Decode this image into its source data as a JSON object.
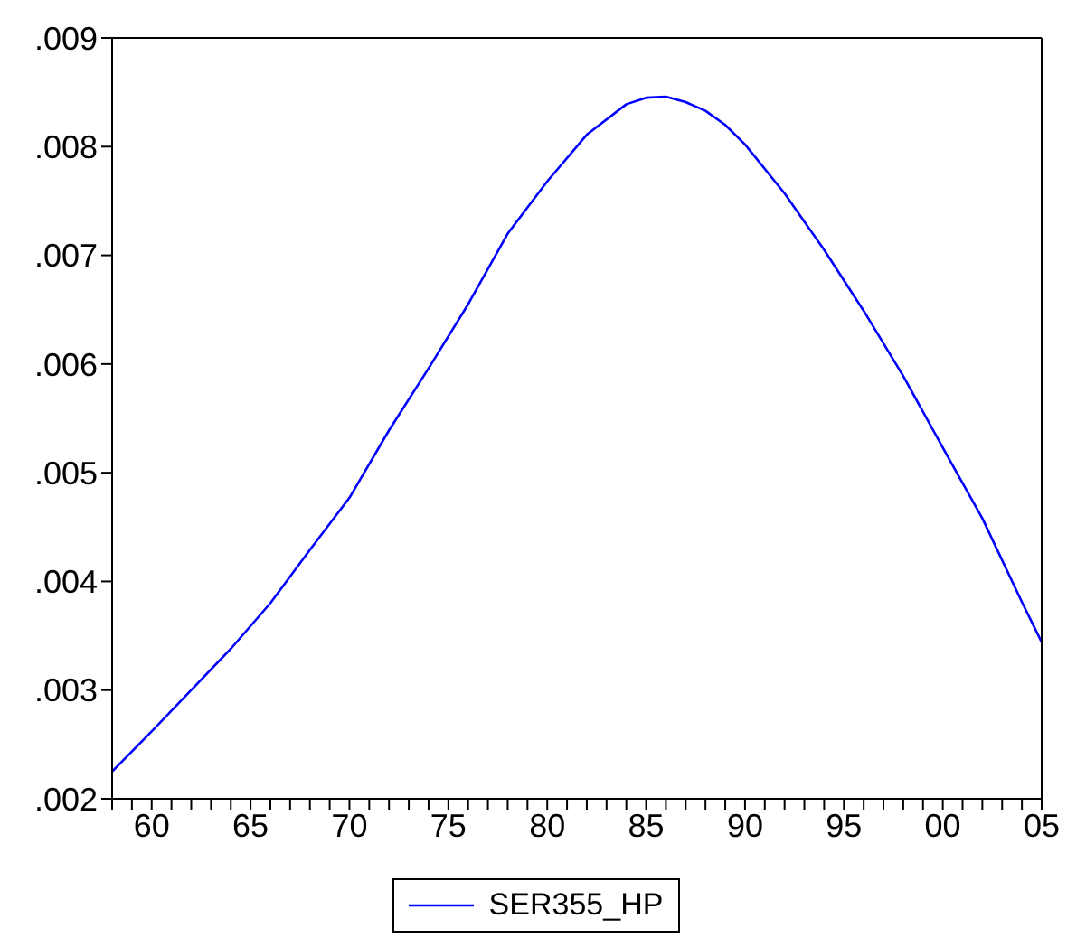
{
  "chart_data": {
    "type": "line",
    "x": [
      1958,
      1960,
      1962,
      1964,
      1966,
      1968,
      1970,
      1972,
      1974,
      1976,
      1978,
      1980,
      1982,
      1984,
      1985,
      1986,
      1987,
      1988,
      1989,
      1990,
      1992,
      1994,
      1996,
      1998,
      2000,
      2002,
      2004,
      2005
    ],
    "series": [
      {
        "name": "SER355_HP",
        "color": "#0000ff",
        "values": [
          0.00225,
          0.00262,
          0.003,
          0.00338,
          0.0038,
          0.00429,
          0.00477,
          0.00539,
          0.00596,
          0.00655,
          0.0072,
          0.00768,
          0.00811,
          0.00839,
          0.00845,
          0.00846,
          0.00841,
          0.00833,
          0.0082,
          0.00802,
          0.00757,
          0.00705,
          0.00649,
          0.00589,
          0.00523,
          0.00458,
          0.00381,
          0.00344
        ]
      }
    ],
    "xlim": [
      1958,
      2005
    ],
    "xticks": [
      {
        "value": 1958,
        "label": null
      },
      {
        "value": 1959,
        "label": null
      },
      {
        "value": 1960,
        "label": "60"
      },
      {
        "value": 1961,
        "label": null
      },
      {
        "value": 1962,
        "label": null
      },
      {
        "value": 1963,
        "label": null
      },
      {
        "value": 1964,
        "label": null
      },
      {
        "value": 1965,
        "label": "65"
      },
      {
        "value": 1966,
        "label": null
      },
      {
        "value": 1967,
        "label": null
      },
      {
        "value": 1968,
        "label": null
      },
      {
        "value": 1969,
        "label": null
      },
      {
        "value": 1970,
        "label": "70"
      },
      {
        "value": 1971,
        "label": null
      },
      {
        "value": 1972,
        "label": null
      },
      {
        "value": 1973,
        "label": null
      },
      {
        "value": 1974,
        "label": null
      },
      {
        "value": 1975,
        "label": "75"
      },
      {
        "value": 1976,
        "label": null
      },
      {
        "value": 1977,
        "label": null
      },
      {
        "value": 1978,
        "label": null
      },
      {
        "value": 1979,
        "label": null
      },
      {
        "value": 1980,
        "label": "80"
      },
      {
        "value": 1981,
        "label": null
      },
      {
        "value": 1982,
        "label": null
      },
      {
        "value": 1983,
        "label": null
      },
      {
        "value": 1984,
        "label": null
      },
      {
        "value": 1985,
        "label": "85"
      },
      {
        "value": 1986,
        "label": null
      },
      {
        "value": 1987,
        "label": null
      },
      {
        "value": 1988,
        "label": null
      },
      {
        "value": 1989,
        "label": null
      },
      {
        "value": 1990,
        "label": "90"
      },
      {
        "value": 1991,
        "label": null
      },
      {
        "value": 1992,
        "label": null
      },
      {
        "value": 1993,
        "label": null
      },
      {
        "value": 1994,
        "label": null
      },
      {
        "value": 1995,
        "label": "95"
      },
      {
        "value": 1996,
        "label": null
      },
      {
        "value": 1997,
        "label": null
      },
      {
        "value": 1998,
        "label": null
      },
      {
        "value": 1999,
        "label": null
      },
      {
        "value": 2000,
        "label": "00"
      },
      {
        "value": 2001,
        "label": null
      },
      {
        "value": 2002,
        "label": null
      },
      {
        "value": 2003,
        "label": null
      },
      {
        "value": 2004,
        "label": null
      },
      {
        "value": 2005,
        "label": "05"
      }
    ],
    "ylim": [
      0.002,
      0.009
    ],
    "yticks": [
      {
        "value": 0.002,
        "label": ".002"
      },
      {
        "value": 0.003,
        "label": ".003"
      },
      {
        "value": 0.004,
        "label": ".004"
      },
      {
        "value": 0.005,
        "label": ".005"
      },
      {
        "value": 0.006,
        "label": ".006"
      },
      {
        "value": 0.007,
        "label": ".007"
      },
      {
        "value": 0.008,
        "label": ".008"
      },
      {
        "value": 0.009,
        "label": ".009"
      }
    ],
    "legend": "bottom",
    "marker": "none",
    "line_style": "solid"
  }
}
